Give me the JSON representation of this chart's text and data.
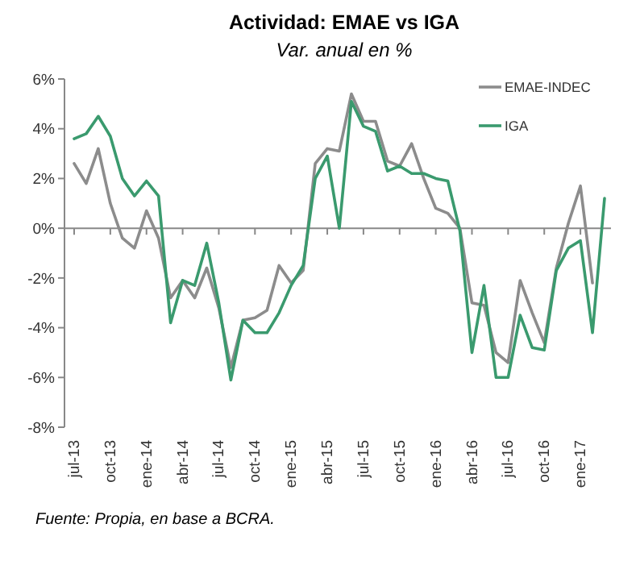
{
  "chart_data": {
    "type": "line",
    "title": "Actividad: EMAE vs IGA",
    "subtitle": "Var. anual en %",
    "categories": [
      "jul-13",
      null,
      null,
      "oct-13",
      null,
      null,
      "ene-14",
      null,
      null,
      "abr-14",
      null,
      null,
      "jul-14",
      null,
      null,
      "oct-14",
      null,
      null,
      "ene-15",
      null,
      null,
      "abr-15",
      null,
      null,
      "jul-15",
      null,
      null,
      "oct-15",
      null,
      null,
      "ene-16",
      null,
      null,
      "abr-16",
      null,
      null,
      "jul-16",
      null,
      null,
      "oct-16",
      null,
      null,
      "ene-17",
      null,
      null
    ],
    "series": [
      {
        "name": "EMAE-INDEC",
        "color": "#8c8c8c",
        "values": [
          2.6,
          1.8,
          3.2,
          1.0,
          -0.4,
          -0.8,
          0.7,
          -0.4,
          -2.8,
          -2.1,
          -2.8,
          -1.6,
          -3.2,
          -5.6,
          -3.7,
          -3.6,
          -3.3,
          -1.5,
          -2.2,
          -1.7,
          2.6,
          3.2,
          3.1,
          5.4,
          4.3,
          4.3,
          2.7,
          2.5,
          3.4,
          2.0,
          0.8,
          0.6,
          0.0,
          -3.0,
          -3.1,
          -5.0,
          -5.4,
          -2.1,
          -3.4,
          -4.6,
          -1.6,
          0.2,
          1.7,
          -2.2,
          null
        ]
      },
      {
        "name": "IGA",
        "color": "#3a9a6e",
        "values": [
          3.6,
          3.8,
          4.5,
          3.7,
          2.0,
          1.3,
          1.9,
          1.3,
          -3.8,
          -2.1,
          -2.3,
          -0.6,
          -3.0,
          -6.1,
          -3.7,
          -4.2,
          -4.2,
          -3.4,
          -2.3,
          -1.5,
          2.0,
          2.9,
          0.0,
          5.1,
          4.1,
          3.9,
          2.3,
          2.5,
          2.2,
          2.2,
          2.0,
          1.9,
          -0.1,
          -5.0,
          -2.3,
          -6.0,
          -6.0,
          -3.5,
          -4.8,
          -4.9,
          -1.7,
          -0.8,
          -0.5,
          -4.2,
          1.2
        ]
      }
    ],
    "ylim": [
      -8,
      6
    ],
    "yticks": [
      {
        "value": -8,
        "label": "-8%"
      },
      {
        "value": -6,
        "label": "-6%"
      },
      {
        "value": -4,
        "label": "-4%"
      },
      {
        "value": -2,
        "label": "-2%"
      },
      {
        "value": 0,
        "label": "0%"
      },
      {
        "value": 2,
        "label": "2%"
      },
      {
        "value": 4,
        "label": "4%"
      },
      {
        "value": 6,
        "label": "6%"
      }
    ],
    "legend": "top right",
    "marker": "none",
    "line_style": "solid",
    "annotations": [
      "Fuente: Propia, en base a BCRA."
    ]
  }
}
